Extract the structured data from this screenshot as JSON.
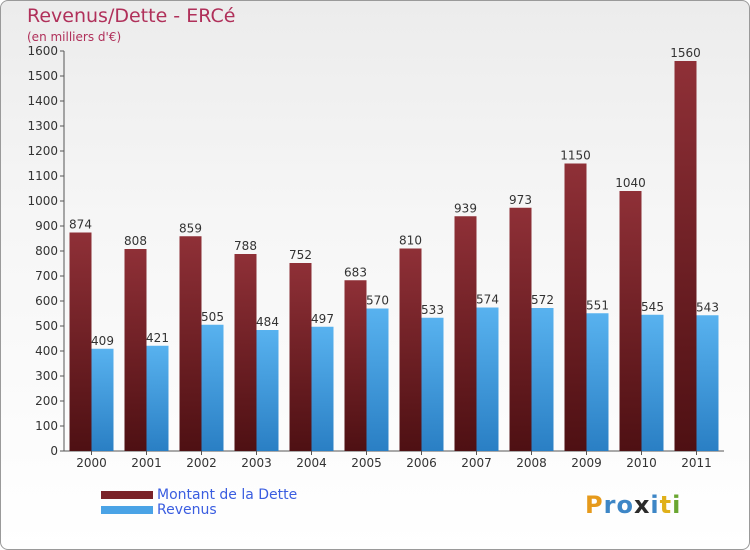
{
  "title": "Revenus/Dette - ERCé",
  "subtitle": "(en milliers d'€)",
  "logo": {
    "letters": [
      "P",
      "r",
      "o",
      "x",
      "i",
      "t",
      "i"
    ],
    "colors": [
      "#e69a1c",
      "#3d86c6",
      "#3d86c6",
      "#2b2b2b",
      "#3d86c6",
      "#e0b01a",
      "#6aa631"
    ]
  },
  "colors": {
    "dette": "#7a2228",
    "revenus": "#4aa3e6",
    "axis": "#555555",
    "grid": "#dcdcdc"
  },
  "chart_data": {
    "type": "bar",
    "categories": [
      "2000",
      "2001",
      "2002",
      "2003",
      "2004",
      "2005",
      "2006",
      "2007",
      "2008",
      "2009",
      "2010",
      "2011"
    ],
    "series": [
      {
        "name": "Montant de la Dette",
        "values": [
          874,
          808,
          859,
          788,
          752,
          683,
          810,
          939,
          973,
          1150,
          1040,
          1560
        ]
      },
      {
        "name": "Revenus",
        "values": [
          409,
          421,
          505,
          484,
          497,
          570,
          533,
          574,
          572,
          551,
          545,
          543
        ]
      }
    ],
    "ylim": [
      0,
      1600
    ],
    "yticks": [
      0,
      100,
      200,
      300,
      400,
      500,
      600,
      700,
      800,
      900,
      1000,
      1100,
      1200,
      1300,
      1400,
      1500,
      1600
    ],
    "grid": false,
    "legend": "bottom-left"
  }
}
